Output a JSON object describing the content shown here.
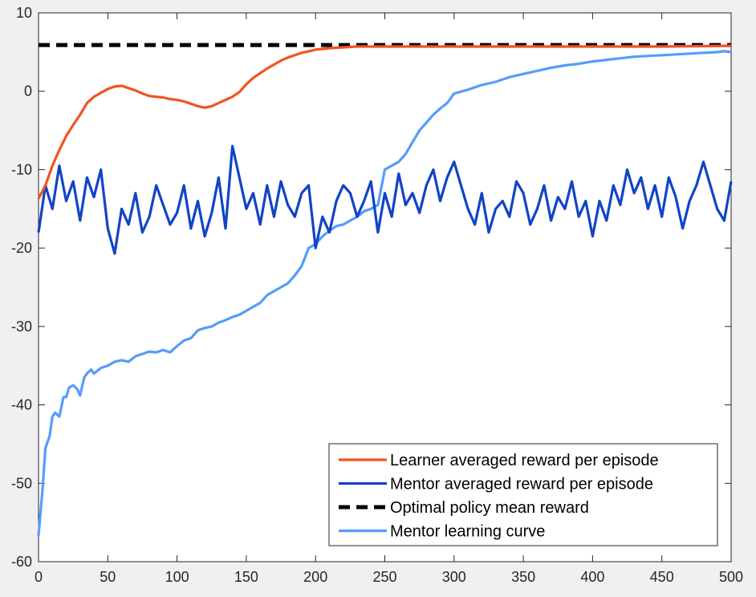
{
  "chart_data": {
    "type": "line",
    "title": "",
    "xlabel": "",
    "ylabel": "",
    "xlim": [
      0,
      500
    ],
    "ylim": [
      -60,
      10
    ],
    "xticks": [
      0,
      50,
      100,
      150,
      200,
      250,
      300,
      350,
      400,
      450,
      500
    ],
    "yticks": [
      -60,
      -50,
      -40,
      -30,
      -20,
      -10,
      0,
      10
    ],
    "grid": false,
    "legend_position": "bottom-right",
    "series": [
      {
        "name": "Learner averaged reward per episode",
        "color": "#f25322",
        "style": "solid",
        "x": [
          0,
          5,
          10,
          15,
          20,
          25,
          30,
          35,
          40,
          45,
          50,
          55,
          60,
          65,
          70,
          75,
          80,
          85,
          90,
          95,
          100,
          105,
          110,
          115,
          120,
          125,
          130,
          135,
          140,
          145,
          150,
          155,
          160,
          165,
          170,
          175,
          180,
          185,
          190,
          195,
          200,
          210,
          220,
          230,
          240,
          250,
          275,
          300,
          350,
          400,
          450,
          500
        ],
        "y": [
          -13.7,
          -12,
          -9.5,
          -7.5,
          -5.7,
          -4.3,
          -3,
          -1.5,
          -0.7,
          -0.2,
          0.3,
          0.6,
          0.7,
          0.4,
          0.1,
          -0.3,
          -0.6,
          -0.7,
          -0.8,
          -1,
          -1.1,
          -1.3,
          -1.6,
          -1.9,
          -2.1,
          -1.9,
          -1.5,
          -1.1,
          -0.7,
          -0.1,
          0.9,
          1.7,
          2.3,
          2.9,
          3.4,
          3.9,
          4.3,
          4.6,
          4.9,
          5.1,
          5.3,
          5.5,
          5.6,
          5.7,
          5.7,
          5.7,
          5.7,
          5.7,
          5.7,
          5.7,
          5.7,
          5.8
        ]
      },
      {
        "name": "Mentor averaged reward per episode",
        "color": "#1144c6",
        "style": "solid",
        "x": [
          0,
          5,
          10,
          15,
          20,
          25,
          30,
          35,
          40,
          45,
          50,
          55,
          60,
          65,
          70,
          75,
          80,
          85,
          90,
          95,
          100,
          105,
          110,
          115,
          120,
          125,
          130,
          135,
          140,
          145,
          150,
          155,
          160,
          165,
          170,
          175,
          180,
          185,
          190,
          195,
          200,
          205,
          210,
          215,
          220,
          225,
          230,
          235,
          240,
          245,
          250,
          255,
          260,
          265,
          270,
          275,
          280,
          285,
          290,
          295,
          300,
          305,
          310,
          315,
          320,
          325,
          330,
          335,
          340,
          345,
          350,
          355,
          360,
          365,
          370,
          375,
          380,
          385,
          390,
          395,
          400,
          405,
          410,
          415,
          420,
          425,
          430,
          435,
          440,
          445,
          450,
          455,
          460,
          465,
          470,
          475,
          480,
          485,
          490,
          495,
          500
        ],
        "y": [
          -18,
          -12,
          -15,
          -9.5,
          -14,
          -11.5,
          -16.5,
          -11,
          -13.5,
          -10,
          -17.5,
          -20.7,
          -15,
          -17,
          -13,
          -18,
          -16,
          -12,
          -14.5,
          -17,
          -15.5,
          -12,
          -17.5,
          -14,
          -18.5,
          -15.5,
          -11,
          -17.5,
          -7,
          -11,
          -15,
          -13,
          -17,
          -12,
          -16,
          -11.5,
          -14.5,
          -16,
          -13,
          -12,
          -20,
          -16,
          -18,
          -14,
          -12,
          -13,
          -16,
          -14,
          -11.5,
          -18,
          -13,
          -16,
          -10.5,
          -14.5,
          -13,
          -15.5,
          -12,
          -10,
          -14,
          -11,
          -9,
          -12,
          -15,
          -17,
          -13,
          -18,
          -15,
          -14,
          -16,
          -11.5,
          -13,
          -17,
          -15,
          -12,
          -16.5,
          -13.5,
          -15,
          -11.5,
          -16,
          -14,
          -18.5,
          -14,
          -16.5,
          -12,
          -14.5,
          -10,
          -13,
          -11,
          -15,
          -12,
          -16,
          -11,
          -13.5,
          -17.5,
          -14,
          -12,
          -9,
          -12,
          -15,
          -16.5,
          -11.5
        ]
      },
      {
        "name": "Optimal policy mean reward",
        "color": "#000000",
        "style": "dashed",
        "x": [
          0,
          500
        ],
        "y": [
          5.9,
          5.9
        ]
      },
      {
        "name": "Mentor learning curve",
        "color": "#549dfa",
        "style": "solid",
        "x": [
          0,
          3,
          5,
          8,
          10,
          12,
          15,
          18,
          20,
          22,
          25,
          28,
          30,
          33,
          35,
          38,
          40,
          45,
          50,
          55,
          60,
          65,
          70,
          75,
          80,
          85,
          90,
          95,
          100,
          105,
          110,
          115,
          120,
          125,
          130,
          135,
          140,
          145,
          150,
          155,
          160,
          165,
          170,
          175,
          180,
          185,
          190,
          195,
          200,
          205,
          210,
          215,
          220,
          225,
          230,
          235,
          240,
          245,
          250,
          255,
          260,
          265,
          270,
          275,
          280,
          285,
          290,
          295,
          300,
          310,
          320,
          330,
          340,
          350,
          360,
          370,
          380,
          390,
          400,
          410,
          420,
          430,
          440,
          450,
          460,
          470,
          480,
          490,
          495,
          500
        ],
        "y": [
          -56.7,
          -50.5,
          -45.5,
          -44,
          -41.5,
          -41,
          -41.5,
          -39,
          -39,
          -37.8,
          -37.5,
          -38,
          -38.8,
          -36.5,
          -36,
          -35.5,
          -36,
          -35.3,
          -35,
          -34.5,
          -34.3,
          -34.5,
          -33.8,
          -33.5,
          -33.2,
          -33.3,
          -33,
          -33.3,
          -32.5,
          -31.8,
          -31.5,
          -30.5,
          -30.2,
          -30,
          -29.5,
          -29.2,
          -28.8,
          -28.5,
          -28,
          -27.5,
          -27,
          -26,
          -25.5,
          -25,
          -24.5,
          -23.5,
          -22.3,
          -20,
          -19.5,
          -18.5,
          -17.8,
          -17.2,
          -17,
          -16.5,
          -16,
          -15.3,
          -15,
          -14.5,
          -10,
          -9.5,
          -9,
          -8,
          -6.5,
          -5,
          -4,
          -3,
          -2.2,
          -1.5,
          -0.3,
          0.2,
          0.8,
          1.2,
          1.8,
          2.2,
          2.6,
          3,
          3.3,
          3.5,
          3.8,
          4,
          4.2,
          4.4,
          4.5,
          4.6,
          4.7,
          4.8,
          4.9,
          5,
          5.1,
          5
        ]
      }
    ]
  }
}
